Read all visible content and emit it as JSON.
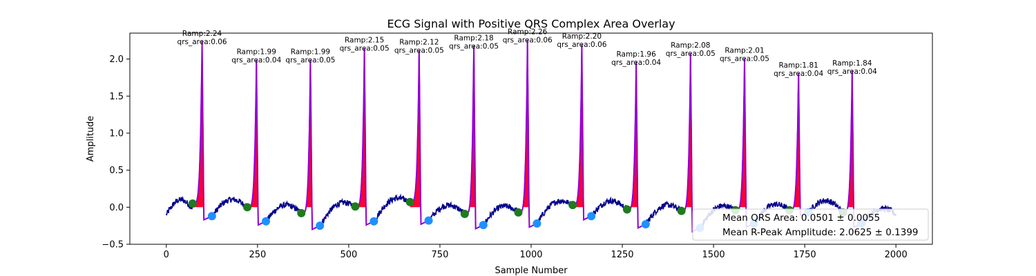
{
  "chart_data": {
    "type": "line",
    "title": "ECG Signal with Positive QRS Complex Area Overlay",
    "xlabel": "Sample Number",
    "ylabel": "Amplitude",
    "xlim": [
      -100,
      2100
    ],
    "ylim": [
      -0.5,
      2.35
    ],
    "xticks": [
      0,
      250,
      500,
      750,
      1000,
      1250,
      1500,
      1750,
      2000
    ],
    "yticks": [
      -0.5,
      0.0,
      0.5,
      1.0,
      1.5,
      2.0
    ],
    "xtick_labels": [
      "0",
      "250",
      "500",
      "750",
      "1000",
      "1250",
      "1500",
      "1750",
      "2000"
    ],
    "ytick_labels": [
      "−0.5",
      "0.0",
      "0.5",
      "1.0",
      "1.5",
      "2.0"
    ],
    "colors": {
      "signal": "#00008b",
      "qrs_segment": "#9400d3",
      "qrs_fill": "#ff0033",
      "q_marker": "#1e7b1e",
      "s_marker": "#1e90ff"
    },
    "beats": [
      {
        "r_x": 98,
        "r_amp": 2.24,
        "q_x": 72,
        "q_y": 0.05,
        "s_x": 125,
        "s_y": -0.12,
        "amp_label": "Ramp:2.24",
        "area_label": "qrs_area:0.06"
      },
      {
        "r_x": 247,
        "r_amp": 1.99,
        "q_x": 222,
        "q_y": 0.0,
        "s_x": 273,
        "s_y": -0.19,
        "amp_label": "Ramp:1.99",
        "area_label": "qrs_area:0.04"
      },
      {
        "r_x": 395,
        "r_amp": 1.99,
        "q_x": 370,
        "q_y": -0.08,
        "s_x": 421,
        "s_y": -0.25,
        "amp_label": "Ramp:1.99",
        "area_label": "qrs_area:0.05"
      },
      {
        "r_x": 543,
        "r_amp": 2.15,
        "q_x": 518,
        "q_y": 0.01,
        "s_x": 569,
        "s_y": -0.19,
        "amp_label": "Ramp:2.15",
        "area_label": "qrs_area:0.05"
      },
      {
        "r_x": 693,
        "r_amp": 2.12,
        "q_x": 668,
        "q_y": 0.07,
        "s_x": 719,
        "s_y": -0.18,
        "amp_label": "Ramp:2.12",
        "area_label": "qrs_area:0.05"
      },
      {
        "r_x": 843,
        "r_amp": 2.18,
        "q_x": 818,
        "q_y": -0.09,
        "s_x": 869,
        "s_y": -0.24,
        "amp_label": "Ramp:2.18",
        "area_label": "qrs_area:0.05"
      },
      {
        "r_x": 990,
        "r_amp": 2.26,
        "q_x": 965,
        "q_y": -0.07,
        "s_x": 1016,
        "s_y": -0.22,
        "amp_label": "Ramp:2.26",
        "area_label": "qrs_area:0.06"
      },
      {
        "r_x": 1139,
        "r_amp": 2.2,
        "q_x": 1114,
        "q_y": 0.03,
        "s_x": 1165,
        "s_y": -0.12,
        "amp_label": "Ramp:2.20",
        "area_label": "qrs_area:0.06"
      },
      {
        "r_x": 1288,
        "r_amp": 1.96,
        "q_x": 1263,
        "q_y": -0.03,
        "s_x": 1314,
        "s_y": -0.23,
        "amp_label": "Ramp:1.96",
        "area_label": "qrs_area:0.04"
      },
      {
        "r_x": 1437,
        "r_amp": 2.08,
        "q_x": 1412,
        "q_y": -0.05,
        "s_x": 1463,
        "s_y": -0.28,
        "amp_label": "Ramp:2.08",
        "area_label": "qrs_area:0.05"
      },
      {
        "r_x": 1585,
        "r_amp": 2.01,
        "q_x": 1560,
        "q_y": -0.04,
        "s_x": 1611,
        "s_y": -0.22,
        "amp_label": "Ramp:2.01",
        "area_label": "qrs_area:0.05"
      },
      {
        "r_x": 1733,
        "r_amp": 1.81,
        "q_x": 1708,
        "q_y": -0.04,
        "s_x": 1759,
        "s_y": -0.07,
        "amp_label": "Ramp:1.81",
        "area_label": "qrs_area:0.04"
      },
      {
        "r_x": 1880,
        "r_amp": 1.84,
        "q_x": 1855,
        "q_y": -0.07,
        "s_x": 1906,
        "s_y": -0.22,
        "amp_label": "Ramp:1.84",
        "area_label": "qrs_area:0.04"
      }
    ],
    "legend": {
      "placement": "lower right",
      "entries": [
        "Mean QRS Area: 0.0501 ± 0.0055",
        "Mean R-Peak Amplitude: 2.0625 ± 0.1399"
      ]
    }
  }
}
